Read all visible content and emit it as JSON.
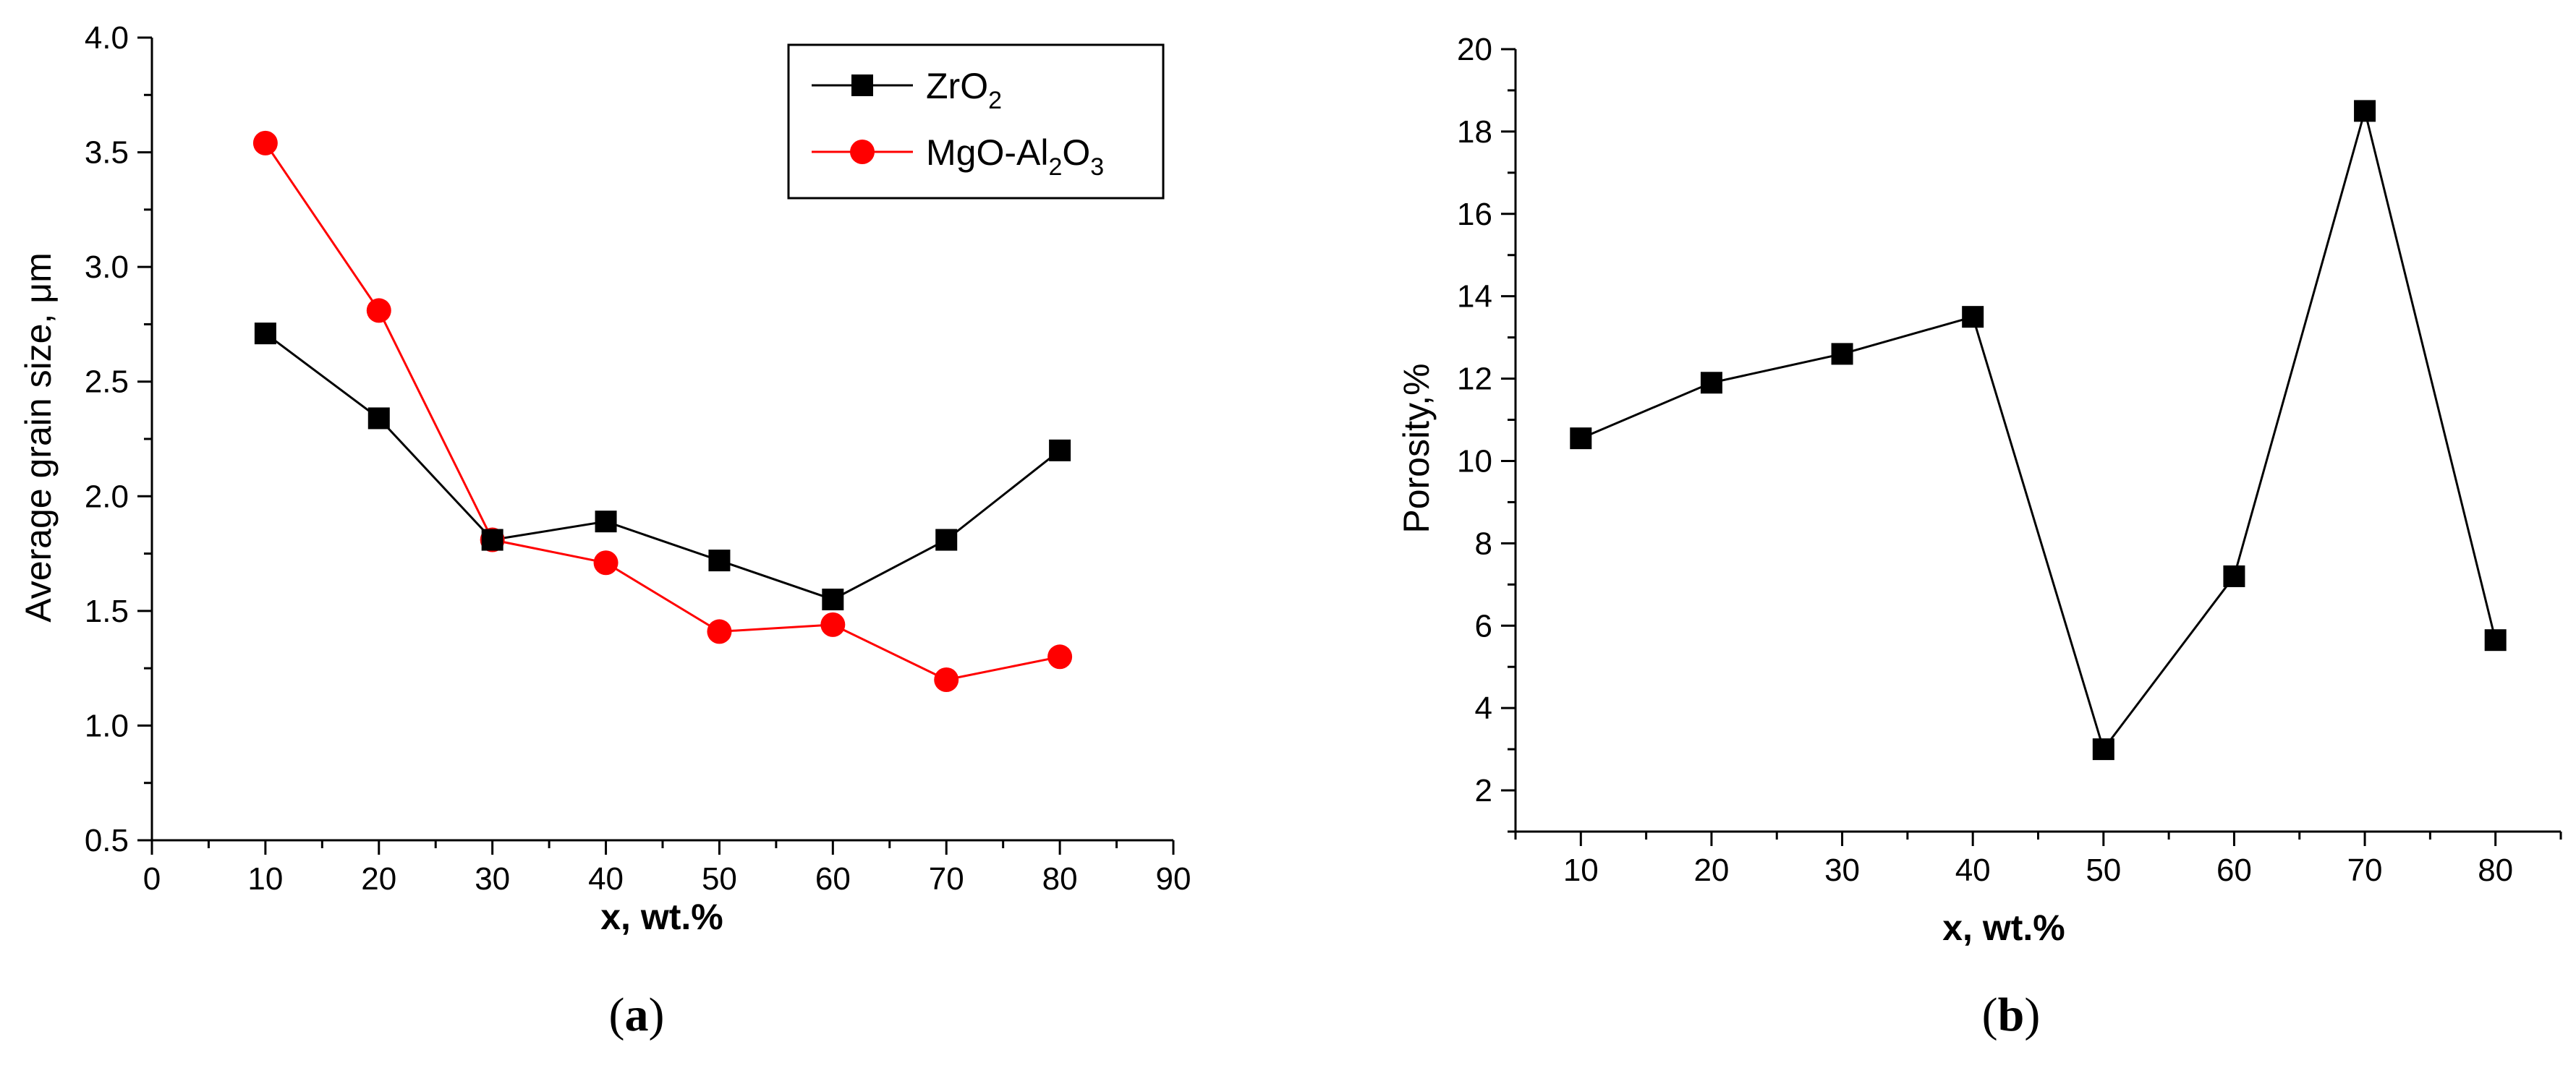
{
  "chart_data": [
    {
      "type": "line",
      "panel": "(a)",
      "panel_letter": "a",
      "xlabel": "x, wt.%",
      "ylabel": "Average grain size, μm",
      "xlim": [
        0,
        90
      ],
      "ylim": [
        0.5,
        4.0
      ],
      "xticks": [
        0,
        10,
        20,
        30,
        40,
        50,
        60,
        70,
        80,
        90
      ],
      "xtick_labels": [
        "0",
        "10",
        "20",
        "30",
        "40",
        "50",
        "60",
        "70",
        "80",
        "90"
      ],
      "yticks": [
        0.5,
        1.0,
        1.5,
        2.0,
        2.5,
        3.0,
        3.5,
        4.0
      ],
      "ytick_labels": [
        "0.5",
        "1.0",
        "1.5",
        "2.0",
        "2.5",
        "3.0",
        "3.5",
        "4.0"
      ],
      "legend_position": "top-right",
      "series": [
        {
          "name": "ZrO2",
          "label_main": "ZrO",
          "label_sub": "2",
          "color": "#000000",
          "marker": "square",
          "x": [
            10,
            20,
            30,
            40,
            50,
            60,
            70,
            80
          ],
          "values": [
            2.71,
            2.34,
            1.81,
            1.89,
            1.72,
            1.55,
            1.81,
            2.2
          ]
        },
        {
          "name": "MgO-Al2O3",
          "label_parts": [
            "MgO-Al",
            "2",
            "O",
            "3"
          ],
          "color": "#ff0000",
          "marker": "circle",
          "x": [
            10,
            20,
            30,
            40,
            50,
            60,
            70,
            80
          ],
          "values": [
            3.54,
            2.81,
            1.81,
            1.71,
            1.41,
            1.44,
            1.2,
            1.3
          ]
        }
      ]
    },
    {
      "type": "line",
      "panel": "(b)",
      "panel_letter": "b",
      "xlabel": "x, wt.%",
      "ylabel": "Porosity,%",
      "xlim": [
        5,
        85
      ],
      "ylim": [
        1,
        20
      ],
      "xticks": [
        10,
        20,
        30,
        40,
        50,
        60,
        70,
        80
      ],
      "xtick_labels": [
        "10",
        "20",
        "30",
        "40",
        "50",
        "60",
        "70",
        "80"
      ],
      "yticks": [
        2,
        4,
        6,
        8,
        10,
        12,
        14,
        16,
        18,
        20
      ],
      "ytick_labels": [
        "2",
        "4",
        "6",
        "8",
        "10",
        "12",
        "14",
        "16",
        "18",
        "20"
      ],
      "series": [
        {
          "name": "Porosity",
          "color": "#000000",
          "marker": "square",
          "x": [
            10,
            20,
            30,
            40,
            50,
            60,
            70,
            80
          ],
          "values": [
            10.55,
            11.9,
            12.6,
            13.5,
            3.0,
            7.2,
            18.5,
            5.65
          ]
        }
      ]
    }
  ]
}
